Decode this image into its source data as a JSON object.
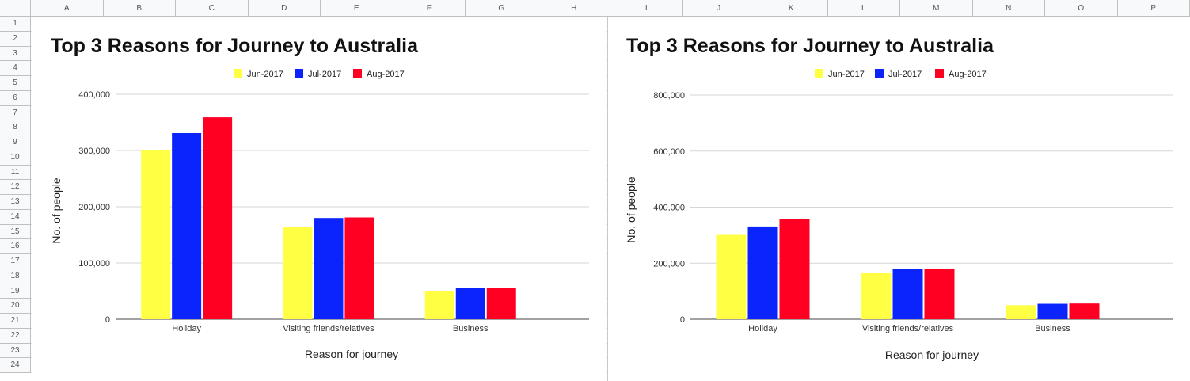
{
  "spreadsheet": {
    "columns": [
      "A",
      "B",
      "C",
      "D",
      "E",
      "F",
      "G",
      "H",
      "I",
      "J",
      "K",
      "L",
      "M",
      "N",
      "O",
      "P"
    ],
    "rows": [
      "1",
      "2",
      "3",
      "4",
      "5",
      "6",
      "7",
      "8",
      "9",
      "10",
      "11",
      "12",
      "13",
      "14",
      "15",
      "16",
      "17",
      "18",
      "19",
      "20",
      "21",
      "22",
      "23",
      "24"
    ]
  },
  "colors": {
    "Jun-2017": "#ffff44",
    "Jul-2017": "#0b24fb",
    "Aug-2017": "#ff0022"
  },
  "chart_data": [
    {
      "type": "bar",
      "title": "Top 3 Reasons for Journey to Australia",
      "xlabel": "Reason for journey",
      "ylabel": "No. of people",
      "categories": [
        "Holiday",
        "Visiting friends/relatives",
        "Business"
      ],
      "series": [
        {
          "name": "Jun-2017",
          "values": [
            301000,
            164000,
            50000
          ]
        },
        {
          "name": "Jul-2017",
          "values": [
            331000,
            180000,
            55000
          ]
        },
        {
          "name": "Aug-2017",
          "values": [
            359000,
            181000,
            56000
          ]
        }
      ],
      "ylim": [
        0,
        400000
      ],
      "yticks": [
        0,
        100000,
        200000,
        300000,
        400000
      ],
      "ytick_labels": [
        "0",
        "100,000",
        "200,000",
        "300,000",
        "400,000"
      ],
      "legend": "top",
      "grid": true
    },
    {
      "type": "bar",
      "title": "Top 3 Reasons for Journey to Australia",
      "xlabel": "Reason for journey",
      "ylabel": "No. of people",
      "categories": [
        "Holiday",
        "Visiting friends/relatives",
        "Business"
      ],
      "series": [
        {
          "name": "Jun-2017",
          "values": [
            301000,
            164000,
            50000
          ]
        },
        {
          "name": "Jul-2017",
          "values": [
            331000,
            180000,
            55000
          ]
        },
        {
          "name": "Aug-2017",
          "values": [
            359000,
            181000,
            56000
          ]
        }
      ],
      "ylim": [
        0,
        800000
      ],
      "yticks": [
        0,
        200000,
        400000,
        600000,
        800000
      ],
      "ytick_labels": [
        "0",
        "200,000",
        "400,000",
        "600,000",
        "800,000"
      ],
      "legend": "top",
      "grid": true
    }
  ]
}
